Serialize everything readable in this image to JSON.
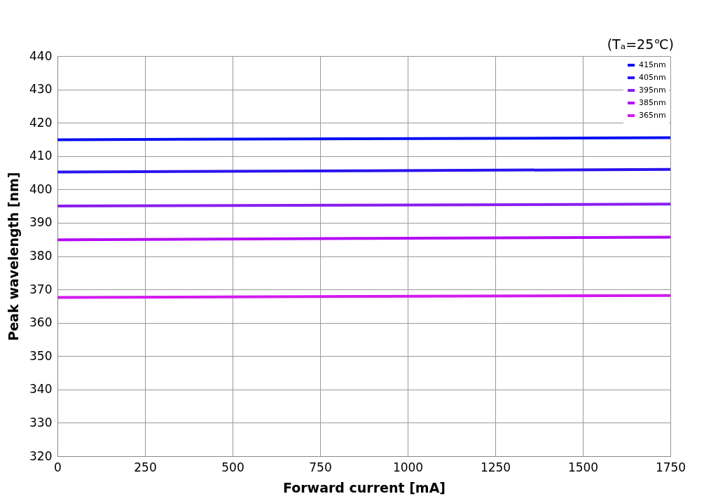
{
  "chart_data": {
    "type": "line",
    "xlabel": "Forward current [mA]",
    "ylabel": "Peak wavelength [nm]",
    "annotations": [
      "(Tₐ=25℃)"
    ],
    "x": [
      0,
      875,
      1750
    ],
    "series": [
      {
        "name": "415nm",
        "color": "#0a10f0",
        "values": [
          414.9,
          415.2,
          415.5
        ]
      },
      {
        "name": "405nm",
        "color": "#2a14ee",
        "values": [
          405.2,
          405.6,
          406.0
        ]
      },
      {
        "name": "395nm",
        "color": "#8a1ef0",
        "values": [
          395.0,
          395.3,
          395.6
        ]
      },
      {
        "name": "385nm",
        "color": "#b40cf6",
        "values": [
          384.9,
          385.3,
          385.7
        ]
      },
      {
        "name": "365nm",
        "color": "#d41af0",
        "values": [
          367.6,
          367.9,
          368.2
        ]
      }
    ],
    "xlim": [
      0,
      1750
    ],
    "xticks": [
      0,
      250,
      500,
      750,
      1000,
      1250,
      1500,
      1750
    ],
    "ylim": [
      320,
      440
    ],
    "yticks": [
      320,
      330,
      340,
      350,
      360,
      370,
      380,
      390,
      400,
      410,
      420,
      430,
      440
    ],
    "grid": true,
    "legend": "top right",
    "marker": "none",
    "line_style": "solid"
  }
}
